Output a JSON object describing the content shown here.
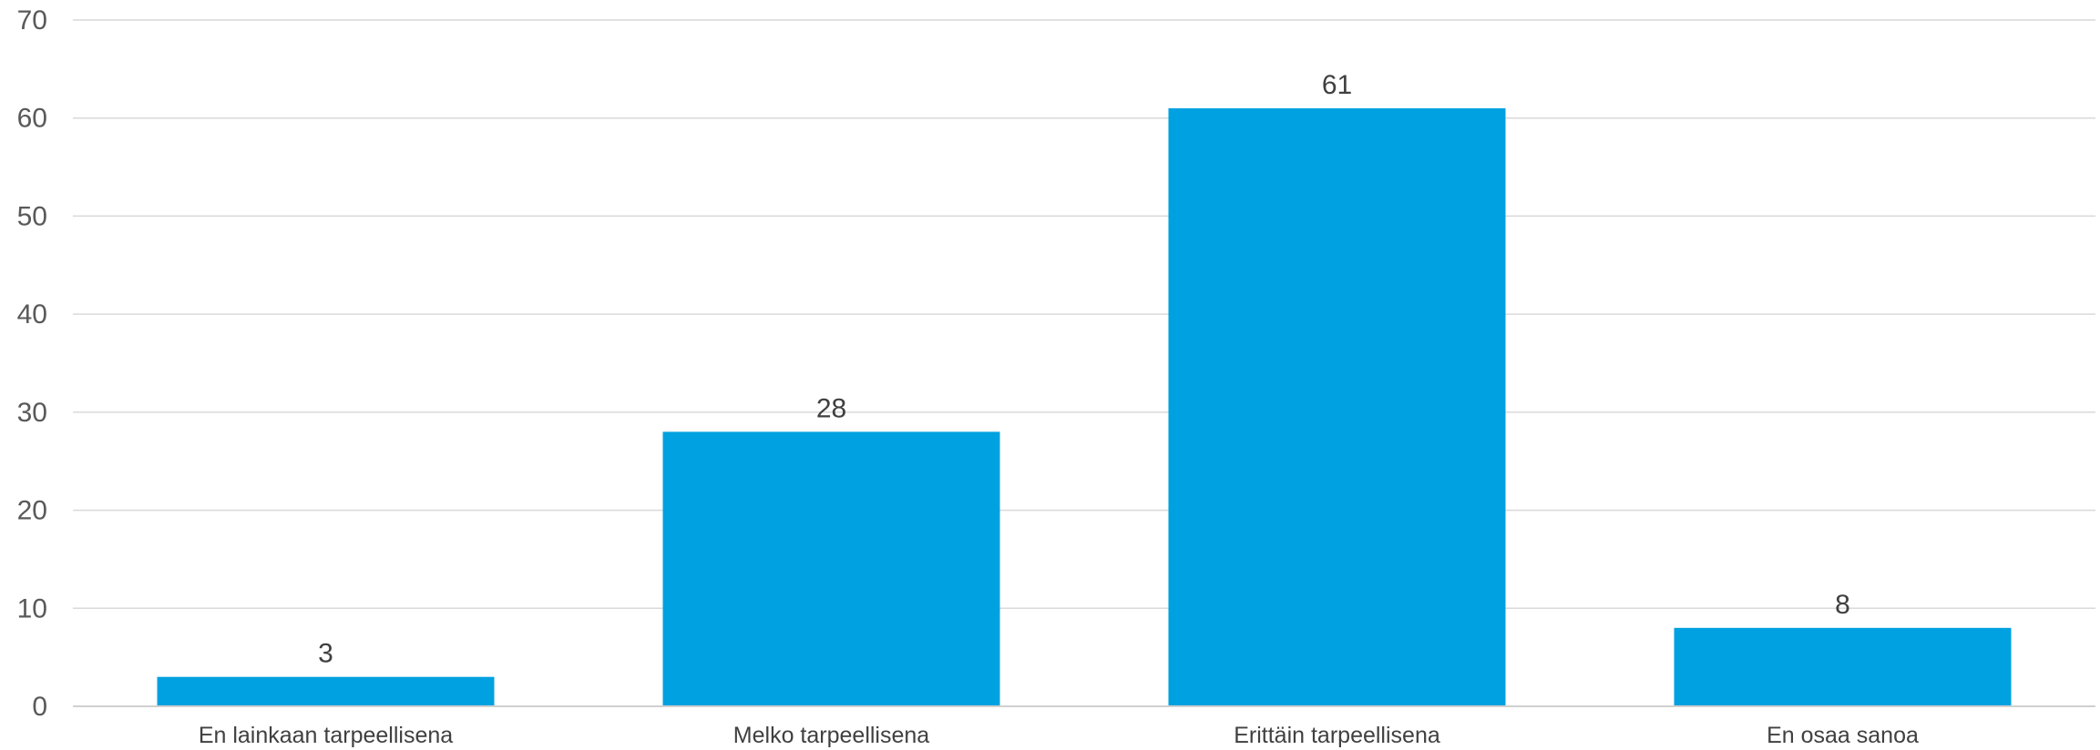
{
  "chart_data": {
    "type": "bar",
    "title": "",
    "xlabel": "",
    "ylabel": "",
    "categories": [
      "En lainkaan tarpeellisena",
      "Melko tarpeellisena",
      "Erittäin tarpeellisena",
      "En osaa sanoa"
    ],
    "values": [
      3,
      28,
      61,
      8
    ],
    "ylim": [
      0,
      70
    ],
    "yticks": [
      0,
      10,
      20,
      30,
      40,
      50,
      60,
      70
    ],
    "grid": true,
    "legend": "none",
    "bar_color": "#00a1e0"
  }
}
